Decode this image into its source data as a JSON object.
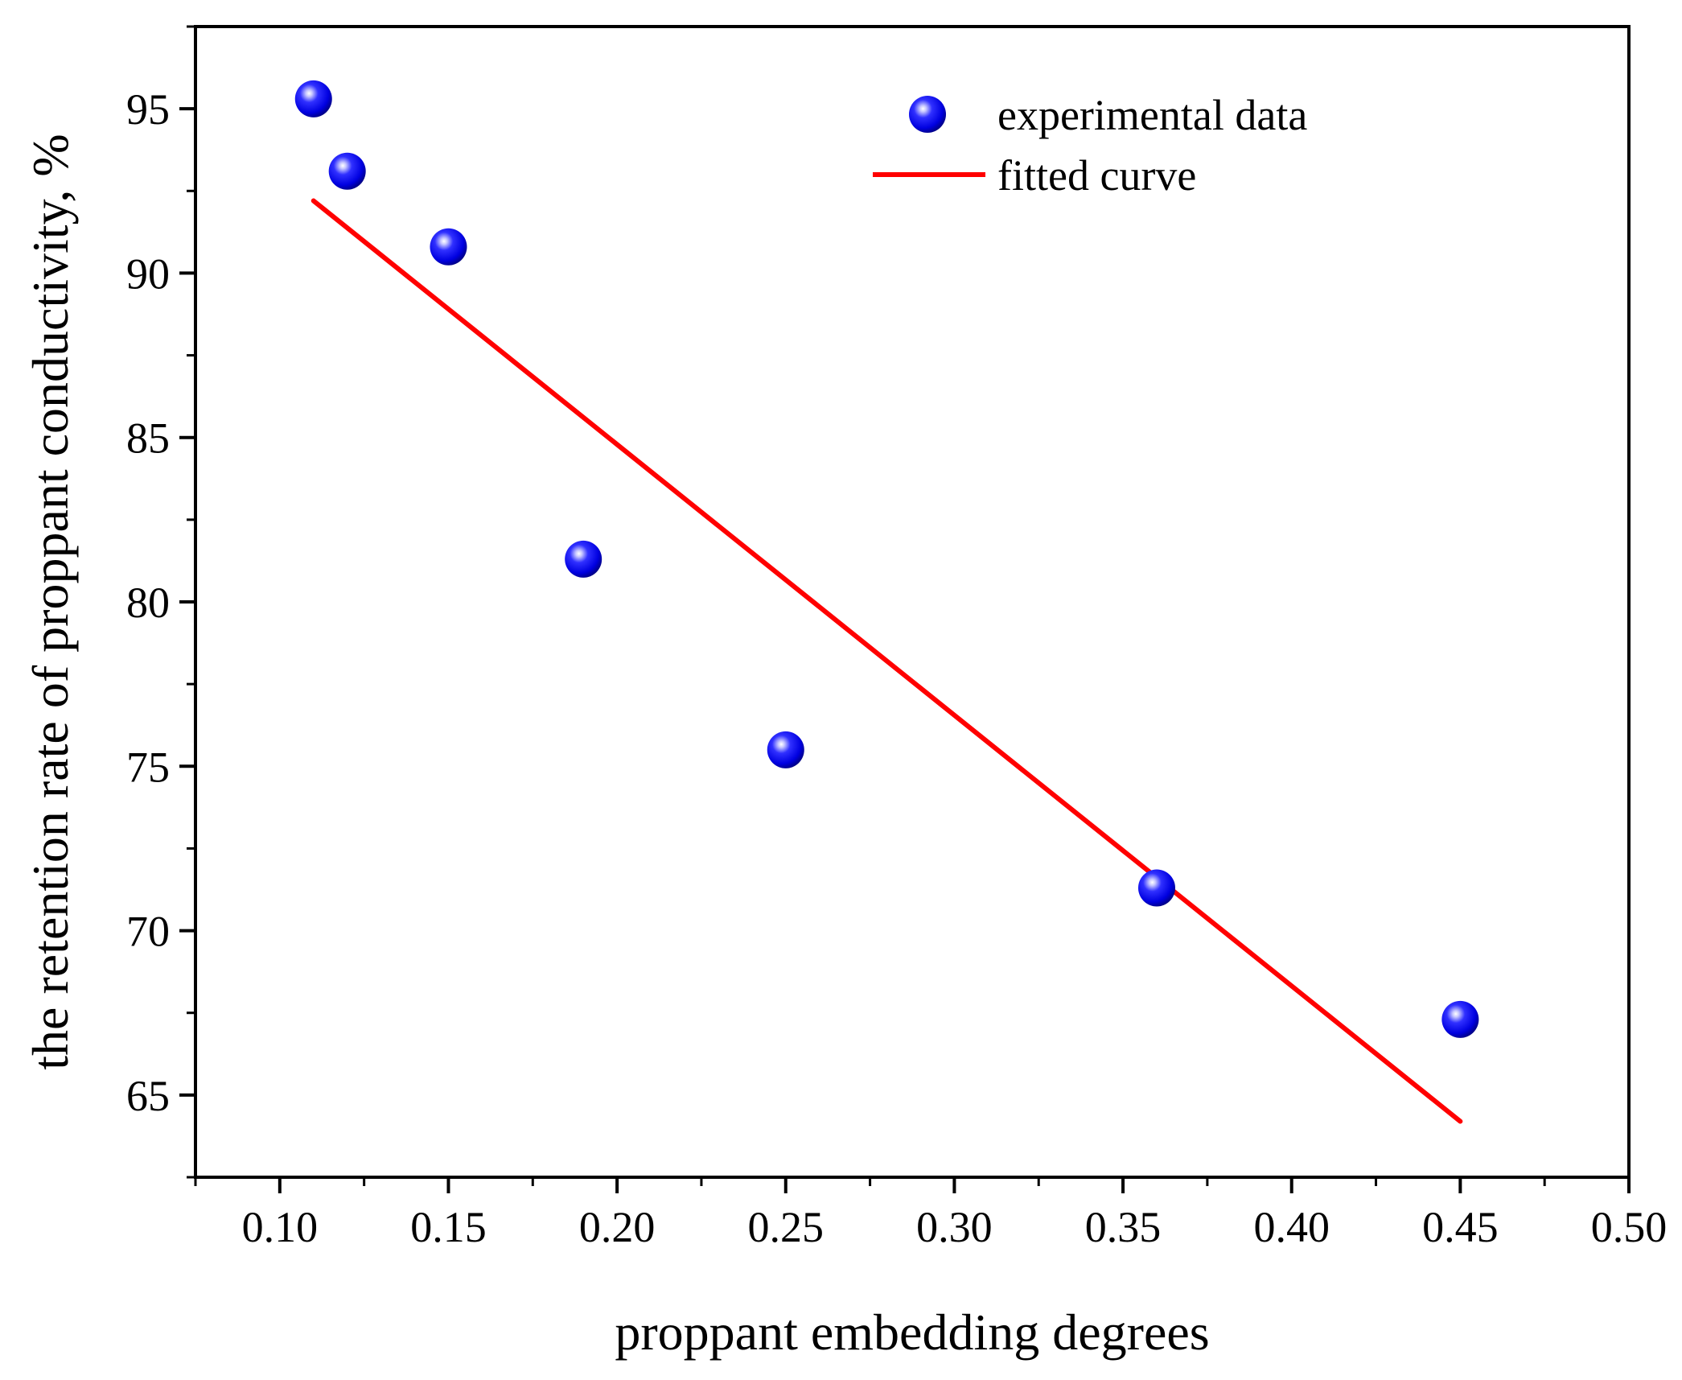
{
  "chart_data": {
    "type": "scatter",
    "xlabel": "proppant embedding degrees",
    "ylabel": "the retention rate of proppant conductivity,  %",
    "xlim": [
      0.075,
      0.5
    ],
    "ylim": [
      62.5,
      97.5
    ],
    "x_ticks": [
      0.1,
      0.15,
      0.2,
      0.25,
      0.3,
      0.35,
      0.4,
      0.45,
      0.5
    ],
    "x_tick_labels": [
      "0.10",
      "0.15",
      "0.20",
      "0.25",
      "0.30",
      "0.35",
      "0.40",
      "0.45",
      "0.50"
    ],
    "y_ticks": [
      65,
      70,
      75,
      80,
      85,
      90,
      95
    ],
    "y_tick_labels": [
      "65",
      "70",
      "75",
      "80",
      "85",
      "90",
      "95"
    ],
    "grid": false,
    "legend_position": "top-right",
    "series": [
      {
        "name": "experimental data",
        "kind": "scatter",
        "color": "#0a0aff",
        "x": [
          0.11,
          0.12,
          0.15,
          0.19,
          0.25,
          0.36,
          0.45
        ],
        "y": [
          95.3,
          93.1,
          90.8,
          81.3,
          75.5,
          71.3,
          67.3
        ]
      },
      {
        "name": "fitted curve",
        "kind": "line",
        "color": "#ff0000",
        "x": [
          0.11,
          0.45
        ],
        "y": [
          92.2,
          64.2
        ]
      }
    ]
  }
}
